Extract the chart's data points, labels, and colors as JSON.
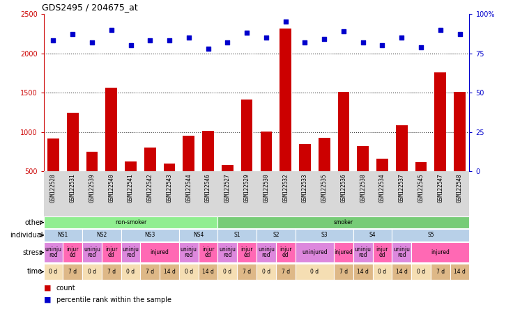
{
  "title": "GDS2495 / 204675_at",
  "samples": [
    "GSM122528",
    "GSM122531",
    "GSM122539",
    "GSM122540",
    "GSM122541",
    "GSM122542",
    "GSM122543",
    "GSM122544",
    "GSM122546",
    "GSM122527",
    "GSM122529",
    "GSM122530",
    "GSM122532",
    "GSM122533",
    "GSM122535",
    "GSM122536",
    "GSM122538",
    "GSM122534",
    "GSM122537",
    "GSM122545",
    "GSM122547",
    "GSM122548"
  ],
  "counts": [
    920,
    1250,
    750,
    1560,
    630,
    800,
    600,
    950,
    1020,
    580,
    1410,
    1010,
    2310,
    850,
    930,
    1510,
    820,
    660,
    1090,
    620,
    1760,
    1510
  ],
  "percentiles": [
    83,
    87,
    82,
    90,
    80,
    83,
    83,
    85,
    78,
    82,
    88,
    85,
    95,
    82,
    84,
    89,
    82,
    80,
    85,
    79,
    90,
    87
  ],
  "bar_color": "#cc0000",
  "dot_color": "#0000cc",
  "ylim_left": [
    500,
    2500
  ],
  "ylim_right": [
    0,
    100
  ],
  "yticks_left": [
    500,
    1000,
    1500,
    2000,
    2500
  ],
  "yticks_right": [
    0,
    25,
    50,
    75,
    100
  ],
  "grid_values": [
    1000,
    1500,
    2000
  ],
  "other_row": [
    {
      "label": "non-smoker",
      "start": 0,
      "end": 9,
      "color": "#90ee90"
    },
    {
      "label": "smoker",
      "start": 9,
      "end": 22,
      "color": "#77cc77"
    }
  ],
  "individual_row": [
    {
      "label": "NS1",
      "start": 0,
      "end": 2,
      "color": "#b8d0e8"
    },
    {
      "label": "NS2",
      "start": 2,
      "end": 4,
      "color": "#b8d0e8"
    },
    {
      "label": "NS3",
      "start": 4,
      "end": 7,
      "color": "#b8d0e8"
    },
    {
      "label": "NS4",
      "start": 7,
      "end": 9,
      "color": "#b8d0e8"
    },
    {
      "label": "S1",
      "start": 9,
      "end": 11,
      "color": "#b8d0e8"
    },
    {
      "label": "S2",
      "start": 11,
      "end": 13,
      "color": "#b8d0e8"
    },
    {
      "label": "S3",
      "start": 13,
      "end": 16,
      "color": "#b8d0e8"
    },
    {
      "label": "S4",
      "start": 16,
      "end": 18,
      "color": "#b8d0e8"
    },
    {
      "label": "S5",
      "start": 18,
      "end": 22,
      "color": "#b8d0e8"
    }
  ],
  "stress_row": [
    {
      "label": "uninju\nred",
      "start": 0,
      "end": 1,
      "color": "#dd88dd"
    },
    {
      "label": "injur\ned",
      "start": 1,
      "end": 2,
      "color": "#ff69b4"
    },
    {
      "label": "uninju\nred",
      "start": 2,
      "end": 3,
      "color": "#dd88dd"
    },
    {
      "label": "injur\ned",
      "start": 3,
      "end": 4,
      "color": "#ff69b4"
    },
    {
      "label": "uninju\nred",
      "start": 4,
      "end": 5,
      "color": "#dd88dd"
    },
    {
      "label": "injured",
      "start": 5,
      "end": 7,
      "color": "#ff69b4"
    },
    {
      "label": "uninju\nred",
      "start": 7,
      "end": 8,
      "color": "#dd88dd"
    },
    {
      "label": "injur\ned",
      "start": 8,
      "end": 9,
      "color": "#ff69b4"
    },
    {
      "label": "uninju\nred",
      "start": 9,
      "end": 10,
      "color": "#dd88dd"
    },
    {
      "label": "injur\ned",
      "start": 10,
      "end": 11,
      "color": "#ff69b4"
    },
    {
      "label": "uninju\nred",
      "start": 11,
      "end": 12,
      "color": "#dd88dd"
    },
    {
      "label": "injur\ned",
      "start": 12,
      "end": 13,
      "color": "#ff69b4"
    },
    {
      "label": "uninjured",
      "start": 13,
      "end": 15,
      "color": "#dd88dd"
    },
    {
      "label": "injured",
      "start": 15,
      "end": 16,
      "color": "#ff69b4"
    },
    {
      "label": "uninju\nred",
      "start": 16,
      "end": 17,
      "color": "#dd88dd"
    },
    {
      "label": "injur\ned",
      "start": 17,
      "end": 18,
      "color": "#ff69b4"
    },
    {
      "label": "uninju\nred",
      "start": 18,
      "end": 19,
      "color": "#dd88dd"
    },
    {
      "label": "injured",
      "start": 19,
      "end": 22,
      "color": "#ff69b4"
    }
  ],
  "time_row": [
    {
      "label": "0 d",
      "start": 0,
      "end": 1,
      "color": "#f5deb3"
    },
    {
      "label": "7 d",
      "start": 1,
      "end": 2,
      "color": "#deb887"
    },
    {
      "label": "0 d",
      "start": 2,
      "end": 3,
      "color": "#f5deb3"
    },
    {
      "label": "7 d",
      "start": 3,
      "end": 4,
      "color": "#deb887"
    },
    {
      "label": "0 d",
      "start": 4,
      "end": 5,
      "color": "#f5deb3"
    },
    {
      "label": "7 d",
      "start": 5,
      "end": 6,
      "color": "#deb887"
    },
    {
      "label": "14 d",
      "start": 6,
      "end": 7,
      "color": "#deb887"
    },
    {
      "label": "0 d",
      "start": 7,
      "end": 8,
      "color": "#f5deb3"
    },
    {
      "label": "14 d",
      "start": 8,
      "end": 9,
      "color": "#deb887"
    },
    {
      "label": "0 d",
      "start": 9,
      "end": 10,
      "color": "#f5deb3"
    },
    {
      "label": "7 d",
      "start": 10,
      "end": 11,
      "color": "#deb887"
    },
    {
      "label": "0 d",
      "start": 11,
      "end": 12,
      "color": "#f5deb3"
    },
    {
      "label": "7 d",
      "start": 12,
      "end": 13,
      "color": "#deb887"
    },
    {
      "label": "0 d",
      "start": 13,
      "end": 15,
      "color": "#f5deb3"
    },
    {
      "label": "7 d",
      "start": 15,
      "end": 16,
      "color": "#deb887"
    },
    {
      "label": "14 d",
      "start": 16,
      "end": 17,
      "color": "#deb887"
    },
    {
      "label": "0 d",
      "start": 17,
      "end": 18,
      "color": "#f5deb3"
    },
    {
      "label": "14 d",
      "start": 18,
      "end": 19,
      "color": "#deb887"
    },
    {
      "label": "0 d",
      "start": 19,
      "end": 20,
      "color": "#f5deb3"
    },
    {
      "label": "7 d",
      "start": 20,
      "end": 21,
      "color": "#deb887"
    },
    {
      "label": "14 d",
      "start": 21,
      "end": 22,
      "color": "#deb887"
    }
  ],
  "chart_bg": "#ffffff",
  "sample_bg": "#d8d8d8"
}
